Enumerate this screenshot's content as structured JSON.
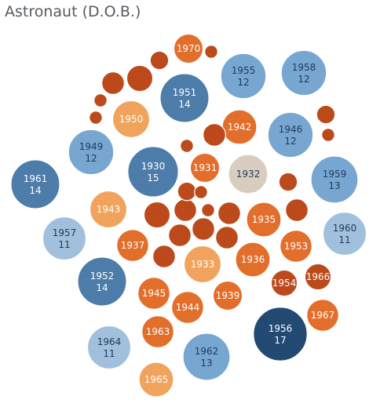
{
  "chart_data": {
    "type": "packed-bubble",
    "title": "Astronaut (D.O.B.)",
    "size_measure": "count",
    "colors": {
      "blue_dark": "#234b73",
      "blue_mid": "#4e7eac",
      "blue_light": "#79a9d4",
      "blue_pale": "#a3c3e0",
      "orange_dark": "#bf4b1c",
      "orange_mid": "#e6702c",
      "orange_light": "#f4a65e",
      "neutral": "#dcd0c3",
      "label_dark": "#ffffff",
      "label_light": "#1f3a5a"
    },
    "bubbles": [
      {
        "year": "1956",
        "count": 17,
        "color": "blue_dark"
      },
      {
        "year": "1930",
        "count": 15,
        "color": "blue_mid"
      },
      {
        "year": "1951",
        "count": 14,
        "color": "blue_mid"
      },
      {
        "year": "1961",
        "count": 14,
        "color": "blue_mid"
      },
      {
        "year": "1952",
        "count": 14,
        "color": "blue_mid"
      },
      {
        "year": "1959",
        "count": 13,
        "color": "blue_light"
      },
      {
        "year": "1962",
        "count": 13,
        "color": "blue_light"
      },
      {
        "year": "1955",
        "count": 12,
        "color": "blue_light"
      },
      {
        "year": "1958",
        "count": 12,
        "color": "blue_light"
      },
      {
        "year": "1946",
        "count": 12,
        "color": "blue_light"
      },
      {
        "year": "1949",
        "count": 12,
        "color": "blue_light"
      },
      {
        "year": "1957",
        "count": 11,
        "color": "blue_pale"
      },
      {
        "year": "1960",
        "count": 11,
        "color": "blue_pale"
      },
      {
        "year": "1964",
        "count": 11,
        "color": "blue_pale"
      },
      {
        "year": "1932",
        "count": 9,
        "color": "neutral"
      },
      {
        "year": "1950",
        "count": 8,
        "color": "orange_light"
      },
      {
        "year": "1943",
        "count": 8,
        "color": "orange_light"
      },
      {
        "year": "1933",
        "count": 8,
        "color": "orange_light"
      },
      {
        "year": "1965",
        "count": 7,
        "color": "orange_light"
      },
      {
        "year": "1935",
        "count": 7,
        "color": "orange_mid"
      },
      {
        "year": "1936",
        "count": 7,
        "color": "orange_mid"
      },
      {
        "year": "1942",
        "count": 7,
        "color": "orange_mid"
      },
      {
        "year": "1937",
        "count": 6,
        "color": "orange_mid"
      },
      {
        "year": "1953",
        "count": 6,
        "color": "orange_mid"
      },
      {
        "year": "1944",
        "count": 6,
        "color": "orange_mid"
      },
      {
        "year": "1945",
        "count": 6,
        "color": "orange_mid"
      },
      {
        "year": "1963",
        "count": 6,
        "color": "orange_mid"
      },
      {
        "year": "1967",
        "count": 6,
        "color": "orange_mid"
      },
      {
        "year": "1939",
        "count": 5,
        "color": "orange_mid"
      },
      {
        "year": "1970",
        "count": 5,
        "color": "orange_mid"
      },
      {
        "year": "1931",
        "count": 5,
        "color": "orange_mid"
      },
      {
        "year": "1954",
        "count": 4,
        "color": "orange_dark"
      },
      {
        "year": "1966",
        "count": 4,
        "color": "orange_dark"
      },
      {
        "year": "",
        "count": 4,
        "color": "orange_dark"
      },
      {
        "year": "",
        "count": 4,
        "color": "orange_dark"
      },
      {
        "year": "",
        "count": 3,
        "color": "orange_dark"
      },
      {
        "year": "",
        "count": 3,
        "color": "orange_dark"
      },
      {
        "year": "",
        "count": 3,
        "color": "orange_dark"
      },
      {
        "year": "",
        "count": 3,
        "color": "orange_dark"
      },
      {
        "year": "",
        "count": 3,
        "color": "orange_dark"
      },
      {
        "year": "",
        "count": 3,
        "color": "orange_dark"
      },
      {
        "year": "",
        "count": 3,
        "color": "orange_dark"
      },
      {
        "year": "",
        "count": 3,
        "color": "orange_dark"
      },
      {
        "year": "",
        "count": 3,
        "color": "orange_dark"
      },
      {
        "year": "",
        "count": 2,
        "color": "orange_dark"
      },
      {
        "year": "",
        "count": 2,
        "color": "orange_dark"
      },
      {
        "year": "",
        "count": 2,
        "color": "orange_dark"
      },
      {
        "year": "",
        "count": 2,
        "color": "orange_dark"
      },
      {
        "year": "",
        "count": 1,
        "color": "orange_dark"
      },
      {
        "year": "",
        "count": 1,
        "color": "orange_dark"
      },
      {
        "year": "",
        "count": 1,
        "color": "orange_dark"
      },
      {
        "year": "",
        "count": 1,
        "color": "orange_dark"
      },
      {
        "year": "",
        "count": 1,
        "color": "orange_dark"
      },
      {
        "year": "",
        "count": 1,
        "color": "orange_dark"
      },
      {
        "year": "",
        "count": 1,
        "color": "orange_dark"
      }
    ]
  }
}
